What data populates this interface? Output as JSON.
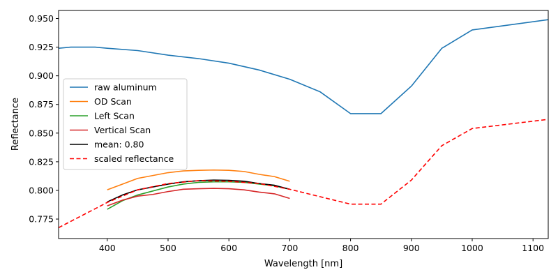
{
  "chart_data": {
    "type": "line",
    "title": "",
    "xlabel": "Wavelength [nm]",
    "ylabel": "Reflectance",
    "xlim": [
      320,
      1125
    ],
    "ylim": [
      0.758,
      0.957
    ],
    "xticks": [
      400,
      500,
      600,
      700,
      800,
      900,
      1000,
      1100
    ],
    "yticks": [
      0.775,
      0.8,
      0.825,
      0.85,
      0.875,
      0.9,
      0.925,
      0.95
    ],
    "xtick_labels": [
      "400",
      "500",
      "600",
      "700",
      "800",
      "900",
      "1000",
      "1100"
    ],
    "ytick_labels": [
      "0.775",
      "0.800",
      "0.825",
      "0.850",
      "0.875",
      "0.900",
      "0.925",
      "0.950"
    ],
    "grid": false,
    "legend_position": "center-left",
    "series": [
      {
        "name": "raw aluminum",
        "color": "#1f77b4",
        "dash": "solid",
        "x": [
          320,
          340,
          360,
          380,
          400,
          450,
          500,
          550,
          600,
          650,
          700,
          750,
          800,
          850,
          900,
          950,
          1000,
          1125
        ],
        "y": [
          0.924,
          0.925,
          0.925,
          0.925,
          0.924,
          0.922,
          0.918,
          0.915,
          0.911,
          0.905,
          0.897,
          0.886,
          0.867,
          0.867,
          0.891,
          0.924,
          0.94,
          0.949
        ]
      },
      {
        "name": "OD Scan",
        "color": "#ff7f0e",
        "dash": "solid",
        "x": [
          400,
          425,
          450,
          475,
          500,
          525,
          550,
          575,
          600,
          625,
          650,
          675,
          700
        ],
        "y": [
          0.8005,
          0.8055,
          0.8105,
          0.813,
          0.8155,
          0.817,
          0.8175,
          0.8178,
          0.8175,
          0.8165,
          0.814,
          0.812,
          0.808
        ]
      },
      {
        "name": "Left Scan",
        "color": "#2ca02c",
        "dash": "solid",
        "x": [
          400,
          425,
          450,
          475,
          500,
          525,
          550,
          575,
          600,
          625,
          650,
          675,
          700
        ],
        "y": [
          0.7835,
          0.791,
          0.796,
          0.7995,
          0.803,
          0.8055,
          0.807,
          0.8075,
          0.8075,
          0.807,
          0.8055,
          0.804,
          0.801
        ]
      },
      {
        "name": "Vertical Scan",
        "color": "#d62728",
        "dash": "solid",
        "x": [
          400,
          425,
          450,
          475,
          500,
          525,
          550,
          575,
          600,
          625,
          650,
          675,
          700
        ],
        "y": [
          0.7865,
          0.7915,
          0.795,
          0.7965,
          0.799,
          0.801,
          0.8015,
          0.8018,
          0.8015,
          0.8005,
          0.7985,
          0.797,
          0.793
        ]
      },
      {
        "name": "mean: 0.80",
        "color": "#000000",
        "dash": "solid",
        "x": [
          400,
          425,
          450,
          475,
          500,
          525,
          550,
          575,
          600,
          625,
          650,
          675,
          700
        ],
        "y": [
          0.79,
          0.796,
          0.8005,
          0.803,
          0.8055,
          0.8075,
          0.8085,
          0.809,
          0.8088,
          0.808,
          0.806,
          0.8045,
          0.801
        ]
      },
      {
        "name": "scaled reflectance",
        "color": "#ff0000",
        "dash": "dashed",
        "x": [
          320,
          400,
          450,
          500,
          550,
          600,
          650,
          700,
          750,
          800,
          850,
          900,
          950,
          1000,
          1125
        ],
        "y": [
          0.7675,
          0.7895,
          0.8005,
          0.806,
          0.8085,
          0.808,
          0.806,
          0.801,
          0.7945,
          0.788,
          0.788,
          0.809,
          0.839,
          0.854,
          0.862
        ]
      }
    ]
  }
}
